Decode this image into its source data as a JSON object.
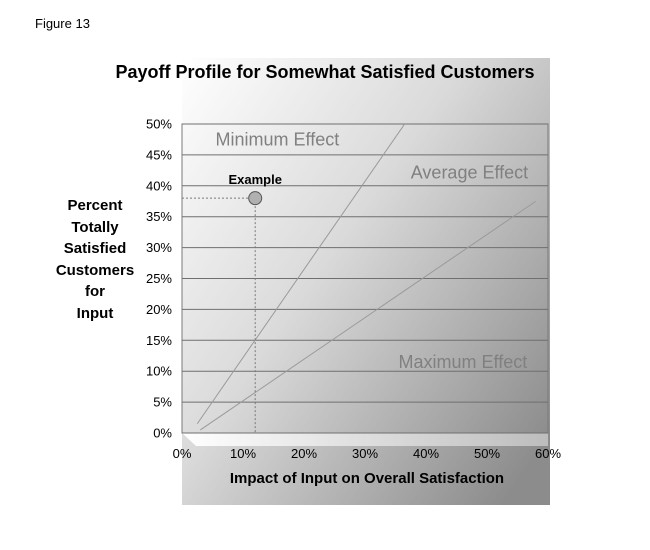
{
  "figure_label": "Figure 13",
  "chart_data": {
    "type": "line",
    "title": "Payoff Profile for Somewhat Satisfied Customers",
    "xlabel": "Impact of Input on Overall Satisfaction",
    "ylabel_lines": [
      "Percent",
      "Totally",
      "Satisfied",
      "Customers",
      "for",
      "Input"
    ],
    "xlim": [
      0,
      60
    ],
    "ylim": [
      0,
      50
    ],
    "x_ticks": [
      0,
      10,
      20,
      30,
      40,
      50,
      60
    ],
    "x_tick_labels": [
      "0%",
      "10%",
      "20%",
      "30%",
      "40%",
      "50%",
      "60%"
    ],
    "y_ticks": [
      0,
      5,
      10,
      15,
      20,
      25,
      30,
      35,
      40,
      45,
      50
    ],
    "y_tick_labels": [
      "0%",
      "5%",
      "10%",
      "15%",
      "20%",
      "25%",
      "30%",
      "35%",
      "40%",
      "45%",
      "50%"
    ],
    "grid": true,
    "series": [
      {
        "name": "Minimum Effect",
        "x": [
          2.5,
          36.5
        ],
        "y": [
          1.5,
          50
        ]
      },
      {
        "name": "Maximum Effect",
        "x": [
          3,
          58
        ],
        "y": [
          0.5,
          37.5
        ]
      }
    ],
    "annotations": [
      {
        "text": "Minimum Effect",
        "x": 5.5,
        "y": 46.5
      },
      {
        "text": "Average Effect",
        "x": 37.5,
        "y": 41.2
      },
      {
        "text": "Maximum Effect",
        "x": 35.5,
        "y": 10.5
      }
    ],
    "points": [
      {
        "label": "Example",
        "x": 12,
        "y": 38
      }
    ],
    "colors": {
      "line": "#9a9a9a",
      "annotation_text": "#808080",
      "point_fill": "#b0b0b0",
      "gradient_light": "#ffffff",
      "gradient_dark": "#8c8c8c"
    }
  }
}
